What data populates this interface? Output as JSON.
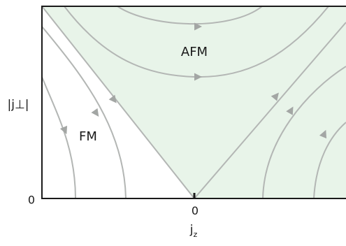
{
  "diagram": {
    "regions": {
      "afm_label": "AFM",
      "fm_label": "FM"
    },
    "axes": {
      "x_label_main": "j",
      "x_label_sub": "z",
      "y_label": "|j⊥|",
      "x_origin_tick": "0",
      "y_origin_tick": "0"
    },
    "colors": {
      "afm_fill": "#e8f4e9",
      "afm_boundary": "#a9d6b0",
      "flow_line": "#b3b6b4",
      "arrow": "#a3a6a4",
      "axis": "#1a1a1a"
    }
  }
}
